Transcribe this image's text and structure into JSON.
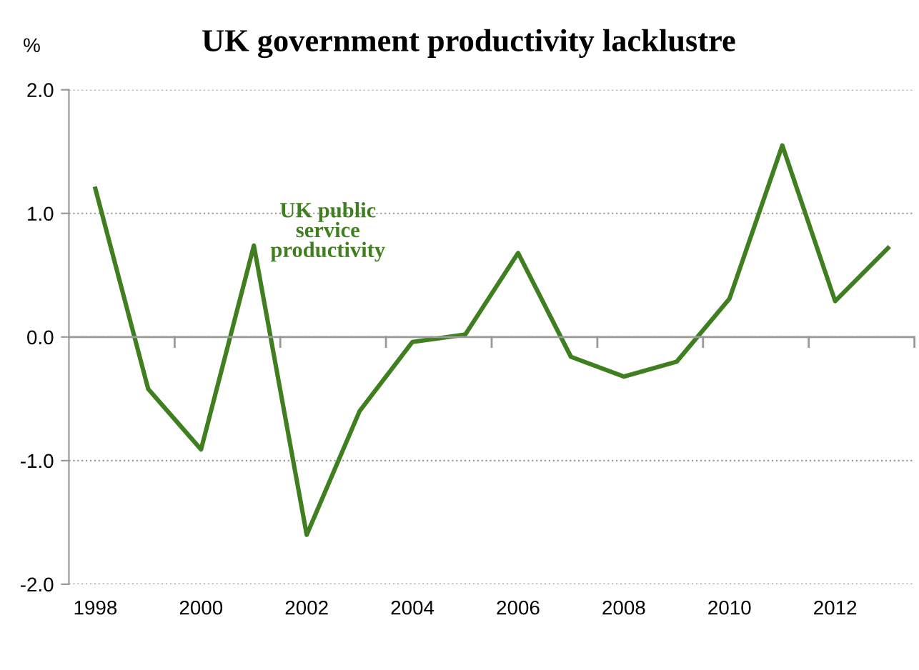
{
  "chart_data": {
    "type": "line",
    "title": "UK government productivity lacklustre",
    "ylabel": "%",
    "categories": [
      "1998",
      null,
      "2000",
      null,
      "2002",
      null,
      "2004",
      null,
      "2006",
      null,
      "2008",
      null,
      "2010",
      null,
      "2012",
      null
    ],
    "series": [
      {
        "name": "UK public service productivity",
        "color": "#3f7f1f",
        "values": [
          1.2,
          -0.42,
          -0.91,
          0.74,
          -1.6,
          -0.6,
          -0.04,
          0.02,
          0.68,
          -0.16,
          -0.32,
          -0.2,
          0.31,
          1.55,
          0.29,
          0.72
        ]
      }
    ],
    "ylim": [
      -2,
      2
    ],
    "yticks": [
      {
        "value": -2,
        "label": "-2.0"
      },
      {
        "value": -1,
        "label": "-1.0"
      },
      {
        "value": 0,
        "label": "0.0"
      },
      {
        "value": 1,
        "label": "1.0"
      },
      {
        "value": 2,
        "label": "2.0"
      }
    ],
    "grid": "y",
    "legend": false,
    "marker": "none",
    "line_style": "solid"
  }
}
